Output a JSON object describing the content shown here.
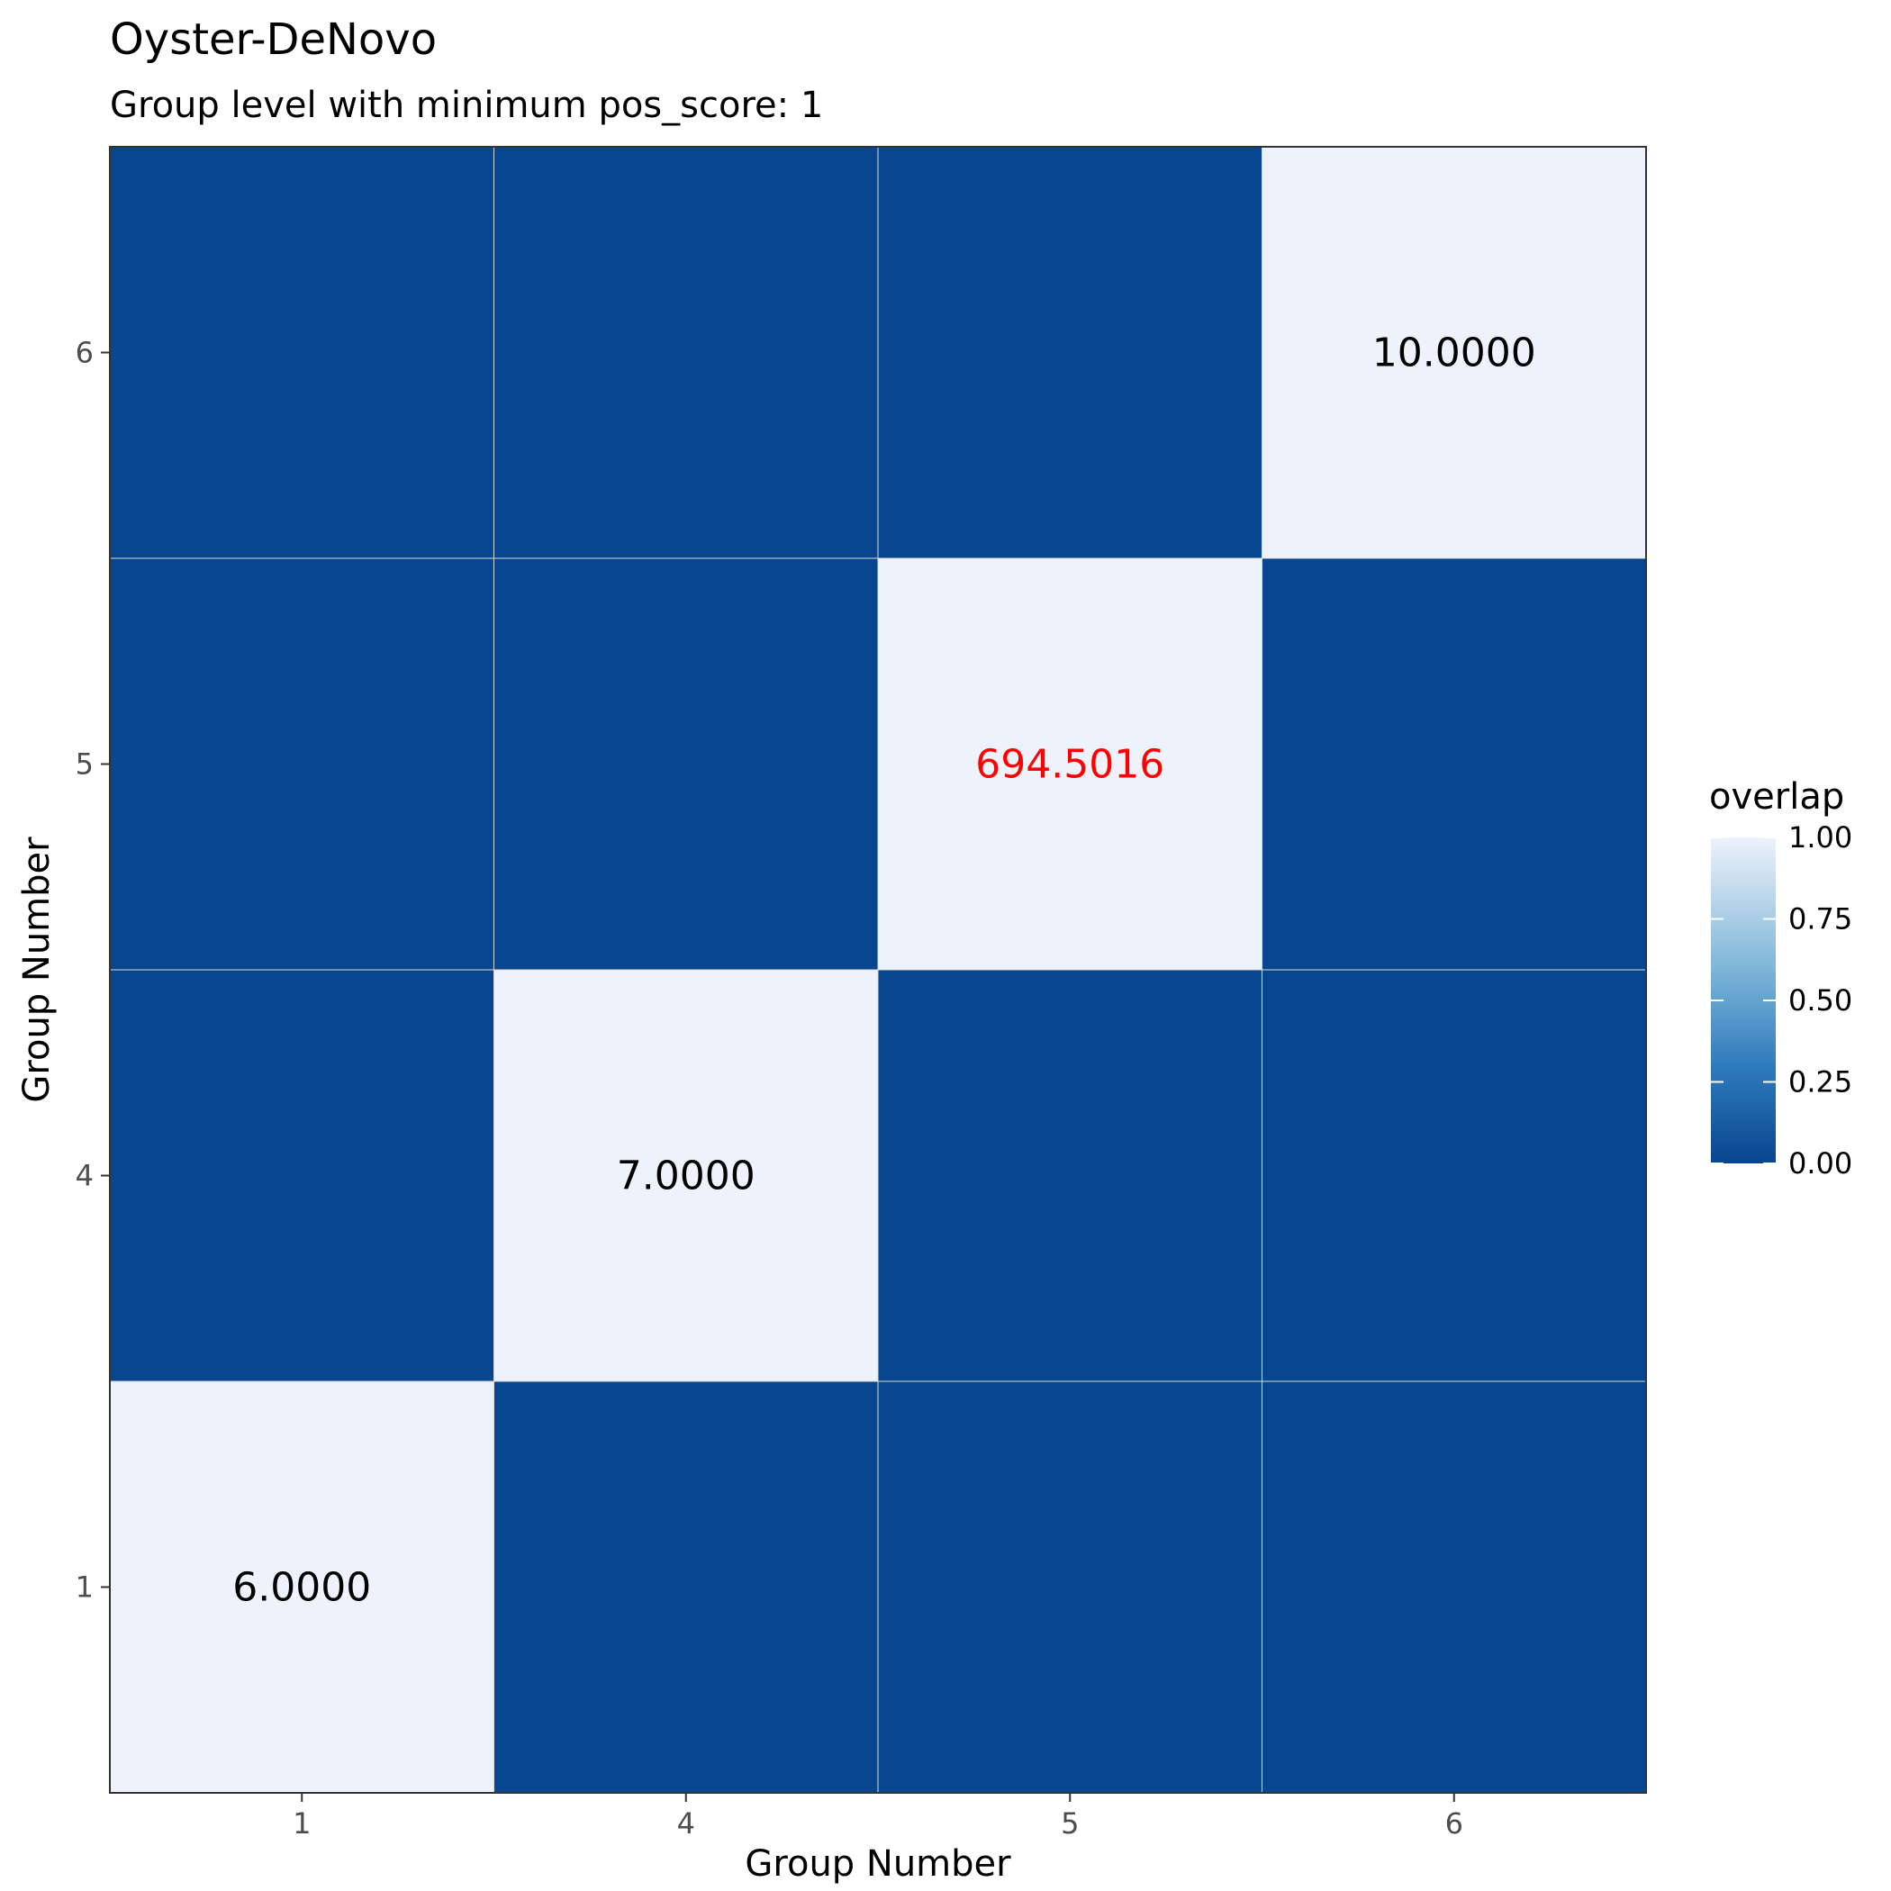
{
  "chart_data": {
    "type": "heatmap",
    "title": "Oyster-DeNovo",
    "subtitle": "Group level with minimum pos_score: 1",
    "xlabel": "Group Number",
    "ylabel": "Group Number",
    "x_categories": [
      "1",
      "4",
      "5",
      "6"
    ],
    "y_categories": [
      "1",
      "4",
      "5",
      "6"
    ],
    "cells": [
      {
        "x": "1",
        "y": "1",
        "overlap": 1,
        "label": "6.0000",
        "label_color": "#000000"
      },
      {
        "x": "4",
        "y": "1",
        "overlap": 0,
        "label": "",
        "label_color": "#000000"
      },
      {
        "x": "5",
        "y": "1",
        "overlap": 0,
        "label": "",
        "label_color": "#000000"
      },
      {
        "x": "6",
        "y": "1",
        "overlap": 0,
        "label": "",
        "label_color": "#000000"
      },
      {
        "x": "1",
        "y": "4",
        "overlap": 0,
        "label": "",
        "label_color": "#000000"
      },
      {
        "x": "4",
        "y": "4",
        "overlap": 1,
        "label": "7.0000",
        "label_color": "#000000"
      },
      {
        "x": "5",
        "y": "4",
        "overlap": 0,
        "label": "",
        "label_color": "#000000"
      },
      {
        "x": "6",
        "y": "4",
        "overlap": 0,
        "label": "",
        "label_color": "#000000"
      },
      {
        "x": "1",
        "y": "5",
        "overlap": 0,
        "label": "",
        "label_color": "#000000"
      },
      {
        "x": "4",
        "y": "5",
        "overlap": 0,
        "label": "",
        "label_color": "#000000"
      },
      {
        "x": "5",
        "y": "5",
        "overlap": 1,
        "label": "694.5016",
        "label_color": "#ff0000"
      },
      {
        "x": "6",
        "y": "5",
        "overlap": 0,
        "label": "",
        "label_color": "#000000"
      },
      {
        "x": "1",
        "y": "6",
        "overlap": 0,
        "label": "",
        "label_color": "#000000"
      },
      {
        "x": "4",
        "y": "6",
        "overlap": 0,
        "label": "",
        "label_color": "#000000"
      },
      {
        "x": "5",
        "y": "6",
        "overlap": 0,
        "label": "",
        "label_color": "#000000"
      },
      {
        "x": "6",
        "y": "6",
        "overlap": 1,
        "label": "10.0000",
        "label_color": "#000000"
      }
    ],
    "legend": {
      "title": "overlap",
      "ticks": [
        1.0,
        0.75,
        0.5,
        0.25,
        0.0
      ],
      "tick_labels": [
        "1.00",
        "0.75",
        "0.50",
        "0.25",
        "0.00"
      ],
      "position": "right"
    },
    "colors": {
      "low": "#08468f",
      "high": "#eef2fc",
      "gridline": "#d9d9d9",
      "border": "#333333"
    },
    "grid": true
  }
}
